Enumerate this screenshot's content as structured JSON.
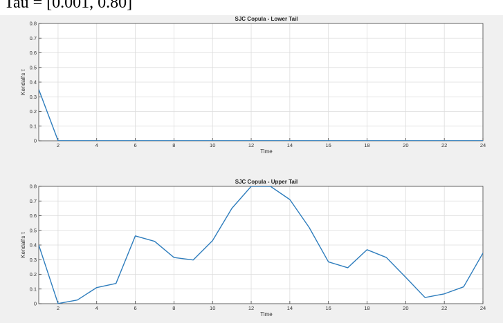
{
  "header_fragment": "Tau = [0.001, 0.80]",
  "chart_data": [
    {
      "type": "line",
      "title": "SJC Copula - Lower Tail",
      "xlabel": "Time",
      "ylabel": "Kendall's τ",
      "xlim": [
        1,
        24
      ],
      "ylim": [
        0,
        0.8
      ],
      "xticks": [
        2,
        4,
        6,
        8,
        10,
        12,
        14,
        16,
        18,
        20,
        22,
        24
      ],
      "yticks": [
        0,
        0.1,
        0.2,
        0.3,
        0.4,
        0.5,
        0.6,
        0.7,
        0.8
      ],
      "grid": true,
      "color": "#2e7dbd",
      "x": [
        1,
        2,
        3,
        4,
        5,
        6,
        7,
        8,
        9,
        10,
        11,
        12,
        13,
        14,
        15,
        16,
        17,
        18,
        19,
        20,
        21,
        22,
        23,
        24
      ],
      "y": [
        0.35,
        0.001,
        0.001,
        0.001,
        0.001,
        0.001,
        0.001,
        0.001,
        0.001,
        0.001,
        0.001,
        0.001,
        0.001,
        0.001,
        0.001,
        0.001,
        0.001,
        0.001,
        0.001,
        0.001,
        0.001,
        0.001,
        0.001,
        0.001
      ]
    },
    {
      "type": "line",
      "title": "SJC Copula - Upper Tail",
      "xlabel": "Time",
      "ylabel": "Kendall's τ",
      "xlim": [
        1,
        24
      ],
      "ylim": [
        0,
        0.8
      ],
      "xticks": [
        2,
        4,
        6,
        8,
        10,
        12,
        14,
        16,
        18,
        20,
        22,
        24
      ],
      "yticks": [
        0,
        0.1,
        0.2,
        0.3,
        0.4,
        0.5,
        0.6,
        0.7,
        0.8
      ],
      "grid": true,
      "color": "#2e7dbd",
      "x": [
        1,
        2,
        3,
        4,
        5,
        6,
        7,
        8,
        9,
        10,
        11,
        12,
        13,
        14,
        15,
        16,
        17,
        18,
        19,
        20,
        21,
        22,
        23,
        24
      ],
      "y": [
        0.4,
        0.001,
        0.025,
        0.11,
        0.138,
        0.462,
        0.425,
        0.315,
        0.298,
        0.43,
        0.65,
        0.8,
        0.8,
        0.71,
        0.52,
        0.285,
        0.245,
        0.368,
        0.315,
        0.18,
        0.042,
        0.067,
        0.115,
        0.345
      ]
    }
  ]
}
